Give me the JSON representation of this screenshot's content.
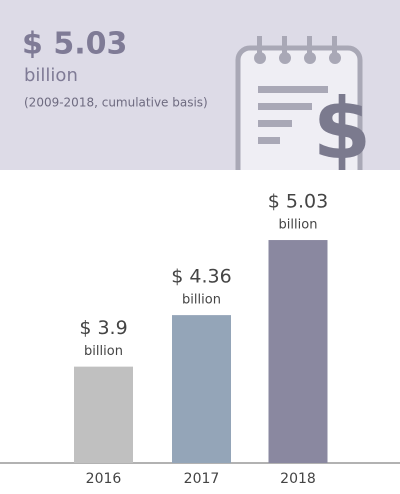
{
  "header": {
    "headline": "$ 5.03",
    "headline_unit": "billion",
    "note": "(2009-2018, cumulative basis)"
  },
  "chart_data": {
    "type": "bar",
    "categories": [
      "2016",
      "2017",
      "2018"
    ],
    "values": [
      3.9,
      4.36,
      5.03
    ],
    "value_labels": [
      "$ 3.9",
      "$ 4.36",
      "$ 5.03"
    ],
    "value_unit": "billion",
    "colors": [
      "#c0c0c0",
      "#94a5b8",
      "#8a88a0"
    ],
    "ylim": [
      3.04,
      5.2
    ]
  }
}
